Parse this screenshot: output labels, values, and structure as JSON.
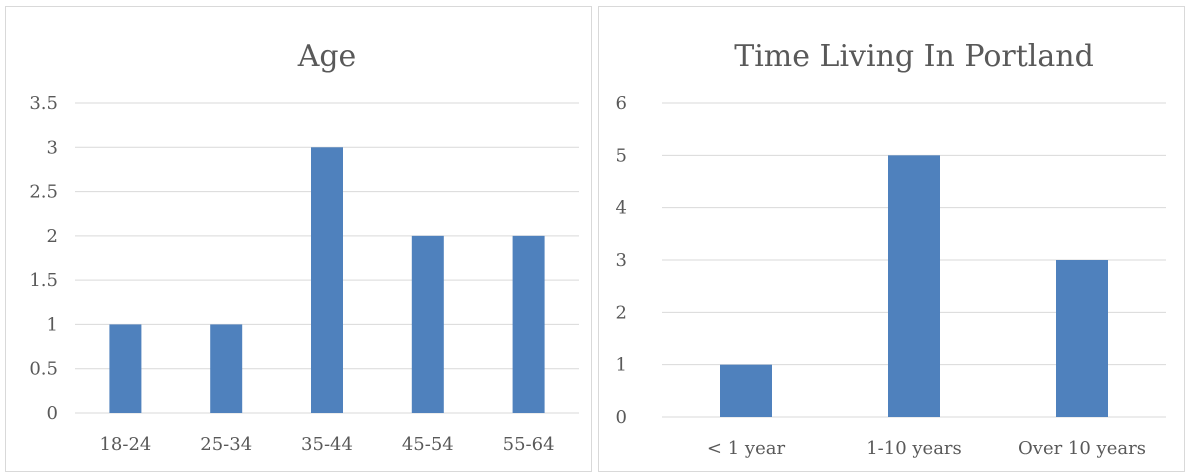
{
  "chart_data": [
    {
      "type": "bar",
      "title": "Age",
      "categories": [
        "18-24",
        "25-34",
        "35-44",
        "45-54",
        "55-64"
      ],
      "values": [
        1,
        1,
        3,
        2,
        2
      ],
      "xlabel": "",
      "ylabel": "",
      "ylim": [
        0,
        3.5
      ],
      "yticks": [
        "0",
        "0.5",
        "1",
        "1.5",
        "2",
        "2.5",
        "3",
        "3.5"
      ],
      "grid": true,
      "bar_color": "#4f81bd"
    },
    {
      "type": "bar",
      "title": "Time Living In Portland",
      "categories": [
        "< 1 year",
        "1-10 years",
        "Over 10 years"
      ],
      "values": [
        1,
        5,
        3
      ],
      "xlabel": "",
      "ylabel": "",
      "ylim": [
        0,
        6
      ],
      "yticks": [
        "0",
        "1",
        "2",
        "3",
        "4",
        "5",
        "6"
      ],
      "grid": true,
      "bar_color": "#4f81bd"
    }
  ]
}
